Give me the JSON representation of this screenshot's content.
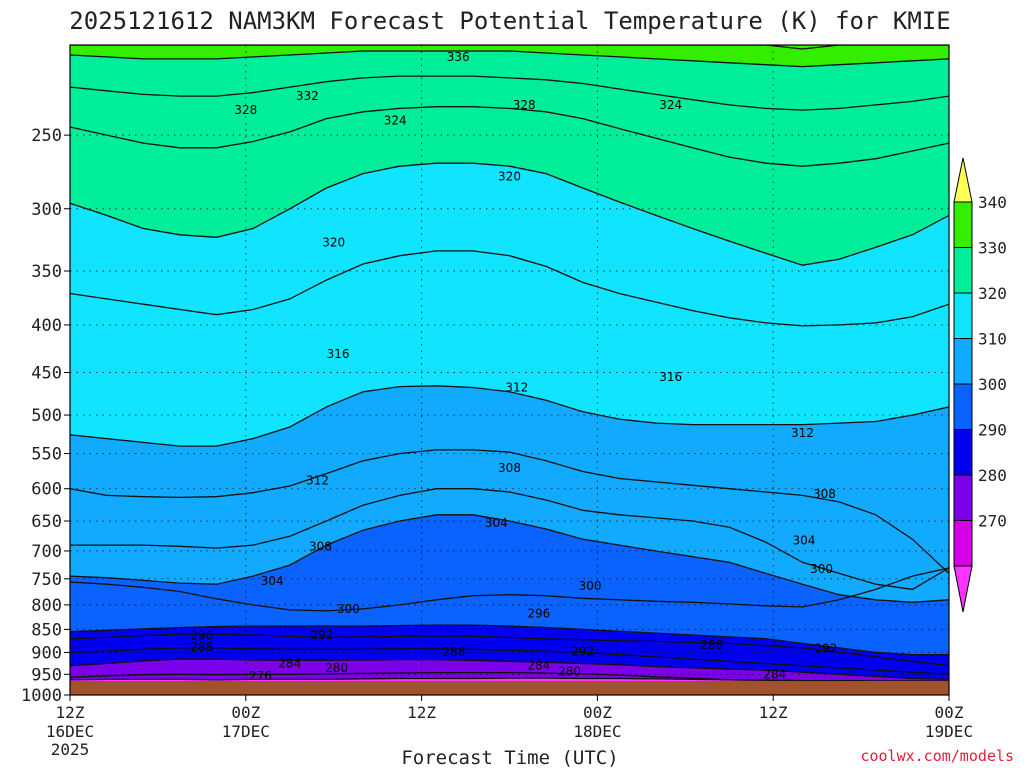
{
  "chart_data": {
    "type": "heatmap",
    "title": "2025121612 NAM3KM Forecast Potential Temperature (K) for KMIE",
    "xlabel": "Forecast Time (UTC)",
    "ylabel": "",
    "credit": "coolwx.com/models",
    "x_ticks": [
      {
        "hour": 0,
        "top": "12Z",
        "bottom": "16DEC",
        "extra": "2025"
      },
      {
        "hour": 12,
        "top": "00Z",
        "bottom": "17DEC",
        "extra": ""
      },
      {
        "hour": 24,
        "top": "12Z",
        "bottom": "",
        "extra": ""
      },
      {
        "hour": 36,
        "top": "00Z",
        "bottom": "18DEC",
        "extra": ""
      },
      {
        "hour": 48,
        "top": "12Z",
        "bottom": "",
        "extra": ""
      },
      {
        "hour": 60,
        "top": "00Z",
        "bottom": "19DEC",
        "extra": ""
      }
    ],
    "xlim": [
      0,
      60
    ],
    "y_ticks": [
      250,
      300,
      350,
      400,
      450,
      500,
      550,
      600,
      650,
      700,
      750,
      800,
      850,
      900,
      950,
      1000
    ],
    "ylim": [
      1000,
      200
    ],
    "y_scale": "log",
    "grid": true,
    "colorbar": {
      "levels": [
        270,
        280,
        290,
        300,
        310,
        320,
        330,
        340
      ],
      "colors": [
        "#ff33ff",
        "#d400e8",
        "#7d00ea",
        "#0000ee",
        "#0a63ff",
        "#11aaff",
        "#11e4ff",
        "#00ee99",
        "#33ee00",
        "#ffff55"
      ],
      "extend": "both"
    },
    "isentropes": [
      {
        "theta": 276,
        "p": [
          963,
          962,
          962,
          962,
          963,
          962,
          962,
          962,
          961,
          960,
          960,
          960,
          959,
          959,
          960,
          960,
          961,
          962,
          963,
          964,
          965,
          965,
          966,
          966,
          966
        ]
      },
      {
        "theta": 280,
        "p": [
          957,
          954,
          951,
          950,
          951,
          950,
          950,
          949,
          948,
          947,
          946,
          946,
          946,
          947,
          949,
          952,
          956,
          959,
          963,
          964,
          965,
          965,
          966,
          966,
          966
        ]
      },
      {
        "theta": 284,
        "p": [
          930,
          925,
          919,
          915,
          915,
          917,
          918,
          918,
          917,
          916,
          916,
          918,
          920,
          922,
          925,
          928,
          932,
          935,
          938,
          940,
          945,
          950,
          955,
          960,
          962
        ]
      },
      {
        "theta": 288,
        "p": [
          900,
          897,
          893,
          890,
          890,
          892,
          893,
          893,
          893,
          892,
          892,
          893,
          895,
          897,
          900,
          905,
          910,
          915,
          920,
          925,
          930,
          935,
          940,
          945,
          950
        ]
      },
      {
        "theta": 292,
        "p": [
          870,
          867,
          863,
          860,
          860,
          862,
          865,
          867,
          866,
          865,
          864,
          865,
          867,
          870,
          872,
          874,
          876,
          878,
          880,
          885,
          890,
          900,
          910,
          920,
          930
        ]
      },
      {
        "theta": 296,
        "p": [
          855,
          852,
          849,
          846,
          844,
          843,
          843,
          843,
          843,
          842,
          841,
          841,
          843,
          846,
          850,
          854,
          858,
          862,
          866,
          870,
          880,
          890,
          900,
          905,
          905
        ]
      },
      {
        "theta": 300,
        "p": [
          756,
          760,
          766,
          774,
          788,
          800,
          810,
          812,
          808,
          800,
          790,
          782,
          780,
          782,
          787,
          790,
          793,
          795,
          798,
          802,
          804,
          790,
          770,
          745,
          730
        ]
      },
      {
        "theta": 304,
        "p": [
          745,
          748,
          753,
          758,
          760,
          745,
          725,
          690,
          665,
          650,
          640,
          640,
          650,
          663,
          680,
          690,
          700,
          710,
          720,
          740,
          760,
          780,
          790,
          795,
          790
        ]
      },
      {
        "theta": 308,
        "p": [
          690,
          690,
          690,
          692,
          695,
          690,
          675,
          650,
          625,
          610,
          600,
          600,
          605,
          617,
          633,
          640,
          645,
          650,
          660,
          685,
          720,
          740,
          760,
          770,
          730
        ]
      },
      {
        "theta": 312,
        "p": [
          600,
          610,
          612,
          613,
          612,
          606,
          596,
          578,
          560,
          550,
          545,
          545,
          548,
          560,
          575,
          585,
          590,
          595,
          600,
          605,
          610,
          620,
          640,
          680,
          740
        ]
      },
      {
        "theta": 316,
        "p": [
          525,
          530,
          535,
          540,
          540,
          530,
          515,
          490,
          472,
          466,
          465,
          467,
          472,
          482,
          496,
          505,
          510,
          512,
          512,
          512,
          512,
          510,
          508,
          500,
          490
        ]
      },
      {
        "theta": 320,
        "p": [
          370,
          375,
          380,
          385,
          390,
          385,
          375,
          358,
          344,
          337,
          333,
          333,
          337,
          346,
          360,
          370,
          378,
          386,
          393,
          398,
          401,
          400,
          398,
          392,
          380
        ]
      },
      {
        "theta": 324,
        "p": [
          296,
          305,
          315,
          320,
          322,
          315,
          300,
          285,
          275,
          270,
          268,
          268,
          270,
          275,
          285,
          295,
          305,
          315,
          325,
          335,
          345,
          340,
          330,
          320,
          305
        ]
      },
      {
        "theta": 328,
        "p": [
          245,
          250,
          255,
          258,
          258,
          254,
          248,
          240,
          236,
          234,
          233,
          233,
          234,
          236,
          240,
          246,
          252,
          258,
          264,
          268,
          270,
          268,
          265,
          260,
          255
        ]
      },
      {
        "theta": 332,
        "p": [
          222,
          224,
          226,
          227,
          227,
          225,
          222,
          219,
          217,
          216,
          216,
          216,
          217,
          218,
          220,
          223,
          226,
          229,
          232,
          234,
          235,
          234,
          232,
          230,
          227
        ]
      },
      {
        "theta": 336,
        "p": [
          205,
          206,
          207,
          207,
          207,
          206,
          205,
          204,
          203,
          203,
          203,
          203,
          203,
          204,
          205,
          206,
          207,
          208,
          209,
          210,
          211,
          210,
          209,
          208,
          207
        ]
      },
      {
        "theta": 340,
        "p": [
          200,
          200,
          200,
          200,
          200,
          200,
          200,
          200,
          200,
          200,
          200,
          200,
          200,
          200,
          200,
          200,
          200,
          200,
          200,
          200,
          202,
          200,
          200,
          200,
          200
        ]
      }
    ],
    "contour_labels": [
      {
        "text": "336",
        "hour": 26.5,
        "p": 206
      },
      {
        "text": "332",
        "hour": 16.2,
        "p": 227
      },
      {
        "text": "328",
        "hour": 12.0,
        "p": 235
      },
      {
        "text": "324",
        "hour": 22.2,
        "p": 241
      },
      {
        "text": "328",
        "hour": 31.0,
        "p": 232
      },
      {
        "text": "324",
        "hour": 41.0,
        "p": 232
      },
      {
        "text": "320",
        "hour": 30.0,
        "p": 277
      },
      {
        "text": "320",
        "hour": 18.0,
        "p": 326
      },
      {
        "text": "316",
        "hour": 18.3,
        "p": 430
      },
      {
        "text": "312",
        "hour": 30.5,
        "p": 467
      },
      {
        "text": "316",
        "hour": 41.0,
        "p": 455
      },
      {
        "text": "312",
        "hour": 50.0,
        "p": 523
      },
      {
        "text": "312",
        "hour": 16.9,
        "p": 588
      },
      {
        "text": "308",
        "hour": 30.0,
        "p": 570
      },
      {
        "text": "308",
        "hour": 51.5,
        "p": 608
      },
      {
        "text": "304",
        "hour": 29.1,
        "p": 653
      },
      {
        "text": "304",
        "hour": 50.1,
        "p": 682
      },
      {
        "text": "308",
        "hour": 17.1,
        "p": 692
      },
      {
        "text": "304",
        "hour": 13.8,
        "p": 754
      },
      {
        "text": "300",
        "hour": 51.3,
        "p": 732
      },
      {
        "text": "300",
        "hour": 35.5,
        "p": 763
      },
      {
        "text": "300",
        "hour": 19.0,
        "p": 808
      },
      {
        "text": "296",
        "hour": 32.0,
        "p": 817
      },
      {
        "text": "296",
        "hour": 9.0,
        "p": 863
      },
      {
        "text": "292",
        "hour": 17.2,
        "p": 862
      },
      {
        "text": "288",
        "hour": 9.0,
        "p": 888
      },
      {
        "text": "288",
        "hour": 26.2,
        "p": 899
      },
      {
        "text": "292",
        "hour": 35.0,
        "p": 898
      },
      {
        "text": "288",
        "hour": 43.8,
        "p": 884
      },
      {
        "text": "292",
        "hour": 51.6,
        "p": 891
      },
      {
        "text": "284",
        "hour": 15.0,
        "p": 925
      },
      {
        "text": "280",
        "hour": 18.2,
        "p": 935
      },
      {
        "text": "284",
        "hour": 32.0,
        "p": 929
      },
      {
        "text": "280",
        "hour": 34.1,
        "p": 944
      },
      {
        "text": "284",
        "hour": 48.1,
        "p": 950
      },
      {
        "text": "276",
        "hour": 13.0,
        "p": 954
      }
    ],
    "terrain": {
      "surface_p": 966,
      "color": "#a0522d"
    }
  }
}
